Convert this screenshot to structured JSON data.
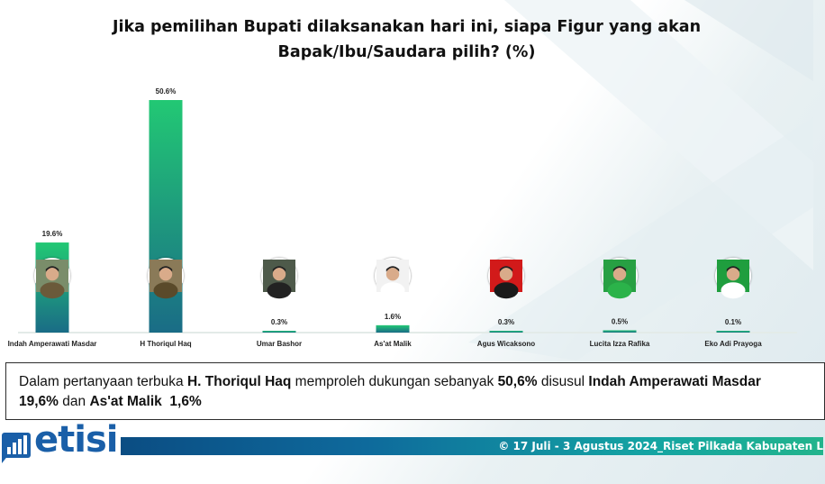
{
  "chart_data": {
    "type": "bar",
    "title": [
      "Jika pemilihan Bupati dilaksanakan hari ini, siapa Figur yang akan",
      "Bapak/Ibu/Saudara pilih? (%)"
    ],
    "categories": [
      "Indah Amperawati Masdar",
      "H Thoriqul Haq",
      "Umar Bashor",
      "As'at Malik",
      "Agus Wicaksono",
      "Lucita Izza Rafika",
      "Eko Adi Prayoga"
    ],
    "values": [
      19.6,
      50.6,
      0.3,
      1.6,
      0.3,
      0.5,
      0.1
    ],
    "value_labels": [
      "19.6%",
      "50.6%",
      "0.3%",
      "1.6%",
      "0.3%",
      "0.5%",
      "0.1%"
    ],
    "ylim": [
      0,
      50.6
    ],
    "grid": false,
    "legend": "none",
    "colors": {
      "bar_top": "#22c874",
      "bar_bottom": "#1a6c86",
      "baseline": "#e3ebe8"
    }
  },
  "summary": {
    "p1": "Dalam pertanyaan terbuka ",
    "b1": "H. Thoriqul Haq",
    "p2": " memproleh  dukungan sebanyak ",
    "b2": "50,6%",
    "p3": " disusul ",
    "b3": "Indah Amperawati Masdar",
    "b4": "19,6%",
    "p4": " dan ",
    "b5": "As'at Malik",
    "p5": "  ",
    "b6": "1,6%"
  },
  "footer": {
    "text": "© 17 Juli - 3 Agustus 2024_Riset Pilkada Kabupaten L"
  },
  "logo": {
    "text": "etisi"
  },
  "avatars": [
    {
      "icon": "portrait-icon",
      "bg": "#7a8d6a",
      "shirt": "#6b5a3a"
    },
    {
      "icon": "portrait-icon",
      "bg": "#8a7a58",
      "shirt": "#5a4a2a"
    },
    {
      "icon": "portrait-icon",
      "bg": "#4e5a4a",
      "shirt": "#222222"
    },
    {
      "icon": "portrait-icon",
      "bg": "#f2f2f2",
      "shirt": "#ffffff"
    },
    {
      "icon": "portrait-icon",
      "bg": "#d21a1a",
      "shirt": "#1a1a1a"
    },
    {
      "icon": "portrait-icon",
      "bg": "#27a043",
      "shirt": "#2bb34a"
    },
    {
      "icon": "portrait-icon",
      "bg": "#1f9e3e",
      "shirt": "#ffffff"
    }
  ]
}
